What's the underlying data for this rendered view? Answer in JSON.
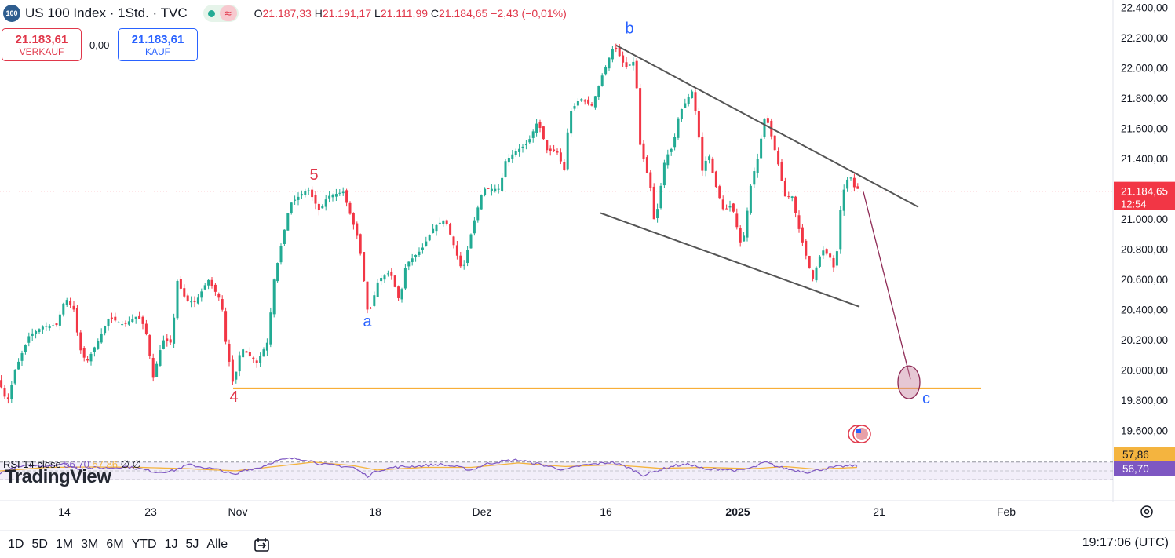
{
  "header": {
    "logo_text": "100",
    "title": "US 100 Index · 1Std. · TVC",
    "wave_icon": "≈",
    "ohlc": {
      "o_label": "O",
      "o": "21.187,33",
      "h_label": "H",
      "h": "21.191,17",
      "l_label": "L",
      "l": "21.111,99",
      "c_label": "C",
      "c": "21.184,65",
      "change": "−2,43 (−0,01%)"
    }
  },
  "trade": {
    "sell_price": "21.183,61",
    "sell_label": "VERKAUF",
    "spread": "0,00",
    "buy_price": "21.183,61",
    "buy_label": "KAUF"
  },
  "rsi": {
    "label": "RSI 14 close",
    "value": "56,70",
    "ma": "57,86",
    "sym1": "∅",
    "sym2": "∅"
  },
  "watermark": "TradingView",
  "toolbar": {
    "timeframes": [
      "1D",
      "5D",
      "1M",
      "3M",
      "6M",
      "YTD",
      "1J",
      "5J",
      "Alle"
    ],
    "clock": "19:17:06 (UTC)"
  },
  "colors": {
    "up": "#22ab94",
    "down": "#f23645",
    "trend": "#555555",
    "support": "#f7a21b",
    "projection": "#8e2a55",
    "wave_red": "#e0374a",
    "wave_blue": "#2962ff",
    "rsi": "#7e57c2",
    "rsi_ma": "#f4b43f"
  },
  "chart_data": {
    "type": "candlestick",
    "ylim": [
      19500,
      22450
    ],
    "y_ticks": [
      19600,
      19800,
      20000,
      20200,
      20400,
      20600,
      20800,
      21000,
      21200,
      21400,
      21600,
      21800,
      22000,
      22200,
      22400
    ],
    "y_tick_labels": [
      "19.600,00",
      "19.800,00",
      "20.000,00",
      "20.200,00",
      "20.400,00",
      "20.600,00",
      "20.800,00",
      "21.000,00",
      "21.200,00",
      "21.400,00",
      "21.600,00",
      "21.800,00",
      "22.000,00",
      "22.200,00",
      "22.400,00"
    ],
    "x_tick_labels": [
      "14",
      "23",
      "Nov",
      "18",
      "Dez",
      "16",
      "2025",
      "21",
      "Feb"
    ],
    "x_tick_bold": [
      false,
      false,
      false,
      false,
      false,
      false,
      true,
      false,
      false
    ],
    "last_price": 21184.65,
    "last_price_label": "21.184,65",
    "countdown": "12:54",
    "price_path": [
      [
        0,
        19950
      ],
      [
        12,
        19780
      ],
      [
        22,
        20000
      ],
      [
        40,
        20230
      ],
      [
        58,
        20290
      ],
      [
        75,
        20300
      ],
      [
        86,
        20480
      ],
      [
        97,
        20400
      ],
      [
        104,
        20150
      ],
      [
        113,
        20050
      ],
      [
        128,
        20200
      ],
      [
        142,
        20350
      ],
      [
        160,
        20300
      ],
      [
        178,
        20360
      ],
      [
        188,
        20280
      ],
      [
        198,
        19950
      ],
      [
        210,
        20200
      ],
      [
        222,
        20180
      ],
      [
        228,
        20600
      ],
      [
        240,
        20460
      ],
      [
        252,
        20450
      ],
      [
        268,
        20600
      ],
      [
        285,
        20450
      ],
      [
        290,
        20200
      ],
      [
        300,
        19900
      ],
      [
        310,
        20150
      ],
      [
        330,
        20050
      ],
      [
        345,
        20200
      ],
      [
        350,
        20550
      ],
      [
        360,
        20800
      ],
      [
        372,
        21100
      ],
      [
        395,
        21200
      ],
      [
        410,
        21050
      ],
      [
        420,
        21150
      ],
      [
        440,
        21180
      ],
      [
        460,
        20850
      ],
      [
        465,
        20650
      ],
      [
        472,
        20350
      ],
      [
        485,
        20600
      ],
      [
        500,
        20650
      ],
      [
        512,
        20450
      ],
      [
        520,
        20700
      ],
      [
        540,
        20800
      ],
      [
        556,
        20950
      ],
      [
        570,
        21000
      ],
      [
        592,
        20650
      ],
      [
        605,
        20950
      ],
      [
        618,
        21200
      ],
      [
        640,
        21200
      ],
      [
        646,
        21380
      ],
      [
        660,
        21450
      ],
      [
        675,
        21500
      ],
      [
        688,
        21650
      ],
      [
        700,
        21450
      ],
      [
        712,
        21450
      ],
      [
        722,
        21320
      ],
      [
        728,
        21700
      ],
      [
        742,
        21800
      ],
      [
        757,
        21750
      ],
      [
        770,
        21950
      ],
      [
        785,
        22150
      ],
      [
        800,
        22000
      ],
      [
        812,
        22050
      ],
      [
        818,
        21500
      ],
      [
        832,
        21200
      ],
      [
        837,
        20950
      ],
      [
        850,
        21400
      ],
      [
        860,
        21480
      ],
      [
        868,
        21700
      ],
      [
        885,
        21850
      ],
      [
        892,
        21600
      ],
      [
        898,
        21300
      ],
      [
        905,
        21450
      ],
      [
        913,
        21250
      ],
      [
        925,
        21050
      ],
      [
        935,
        21100
      ],
      [
        948,
        20800
      ],
      [
        960,
        21250
      ],
      [
        968,
        21400
      ],
      [
        978,
        21700
      ],
      [
        988,
        21500
      ],
      [
        995,
        21350
      ],
      [
        1003,
        21150
      ],
      [
        1012,
        21150
      ],
      [
        1020,
        20950
      ],
      [
        1030,
        20750
      ],
      [
        1038,
        20600
      ],
      [
        1050,
        20800
      ],
      [
        1060,
        20750
      ],
      [
        1067,
        20650
      ],
      [
        1075,
        21150
      ],
      [
        1085,
        21300
      ],
      [
        1092,
        21200
      ]
    ],
    "rsi_path": [
      [
        0,
        44
      ],
      [
        20,
        58
      ],
      [
        40,
        62
      ],
      [
        60,
        62
      ],
      [
        80,
        66
      ],
      [
        100,
        55
      ],
      [
        120,
        57
      ],
      [
        140,
        57
      ],
      [
        160,
        60
      ],
      [
        180,
        54
      ],
      [
        200,
        47
      ],
      [
        220,
        50
      ],
      [
        240,
        64
      ],
      [
        260,
        58
      ],
      [
        280,
        52
      ],
      [
        300,
        40
      ],
      [
        310,
        52
      ],
      [
        330,
        57
      ],
      [
        350,
        72
      ],
      [
        370,
        78
      ],
      [
        390,
        76
      ],
      [
        410,
        65
      ],
      [
        430,
        62
      ],
      [
        450,
        58
      ],
      [
        468,
        38
      ],
      [
        480,
        50
      ],
      [
        500,
        58
      ],
      [
        520,
        60
      ],
      [
        540,
        62
      ],
      [
        560,
        65
      ],
      [
        580,
        60
      ],
      [
        600,
        52
      ],
      [
        620,
        66
      ],
      [
        640,
        72
      ],
      [
        660,
        75
      ],
      [
        680,
        68
      ],
      [
        700,
        60
      ],
      [
        720,
        52
      ],
      [
        740,
        62
      ],
      [
        760,
        66
      ],
      [
        780,
        70
      ],
      [
        800,
        58
      ],
      [
        820,
        40
      ],
      [
        840,
        52
      ],
      [
        860,
        62
      ],
      [
        880,
        65
      ],
      [
        900,
        52
      ],
      [
        920,
        55
      ],
      [
        940,
        50
      ],
      [
        960,
        58
      ],
      [
        975,
        70
      ],
      [
        990,
        60
      ],
      [
        1010,
        52
      ],
      [
        1030,
        47
      ],
      [
        1050,
        55
      ],
      [
        1070,
        60
      ],
      [
        1092,
        62
      ]
    ],
    "rsi_ma_path": [
      [
        0,
        50
      ],
      [
        60,
        58
      ],
      [
        120,
        59
      ],
      [
        180,
        58
      ],
      [
        240,
        55
      ],
      [
        300,
        50
      ],
      [
        360,
        62
      ],
      [
        400,
        70
      ],
      [
        450,
        62
      ],
      [
        480,
        52
      ],
      [
        540,
        58
      ],
      [
        600,
        58
      ],
      [
        660,
        68
      ],
      [
        720,
        60
      ],
      [
        780,
        64
      ],
      [
        840,
        56
      ],
      [
        900,
        58
      ],
      [
        960,
        55
      ],
      [
        1000,
        60
      ],
      [
        1040,
        54
      ],
      [
        1092,
        58
      ]
    ],
    "rsi_last": 56.7,
    "rsi_ma_last": 57.86,
    "rsi_value_label": "56,70",
    "rsi_ma_label": "57,86",
    "support_level": 19880,
    "trendlines": [
      {
        "from": [
          785,
          22150
        ],
        "to": [
          1170,
          21080
        ]
      },
      {
        "from": [
          765,
          21040
        ],
        "to": [
          1095,
          20420
        ]
      }
    ],
    "projection": {
      "from": [
        1100,
        21180
      ],
      "to": [
        1160,
        19940
      ],
      "ellipse_level": 19920
    },
    "wave_labels": [
      {
        "text": "4",
        "x": 298,
        "price": 19790,
        "color": "red"
      },
      {
        "text": "5",
        "x": 400,
        "price": 21260,
        "color": "red"
      },
      {
        "text": "a",
        "x": 468,
        "price": 20290,
        "color": "blue"
      },
      {
        "text": "b",
        "x": 802,
        "price": 22230,
        "color": "blue"
      },
      {
        "text": "c",
        "x": 1180,
        "price": 19780,
        "color": "blue"
      }
    ]
  }
}
